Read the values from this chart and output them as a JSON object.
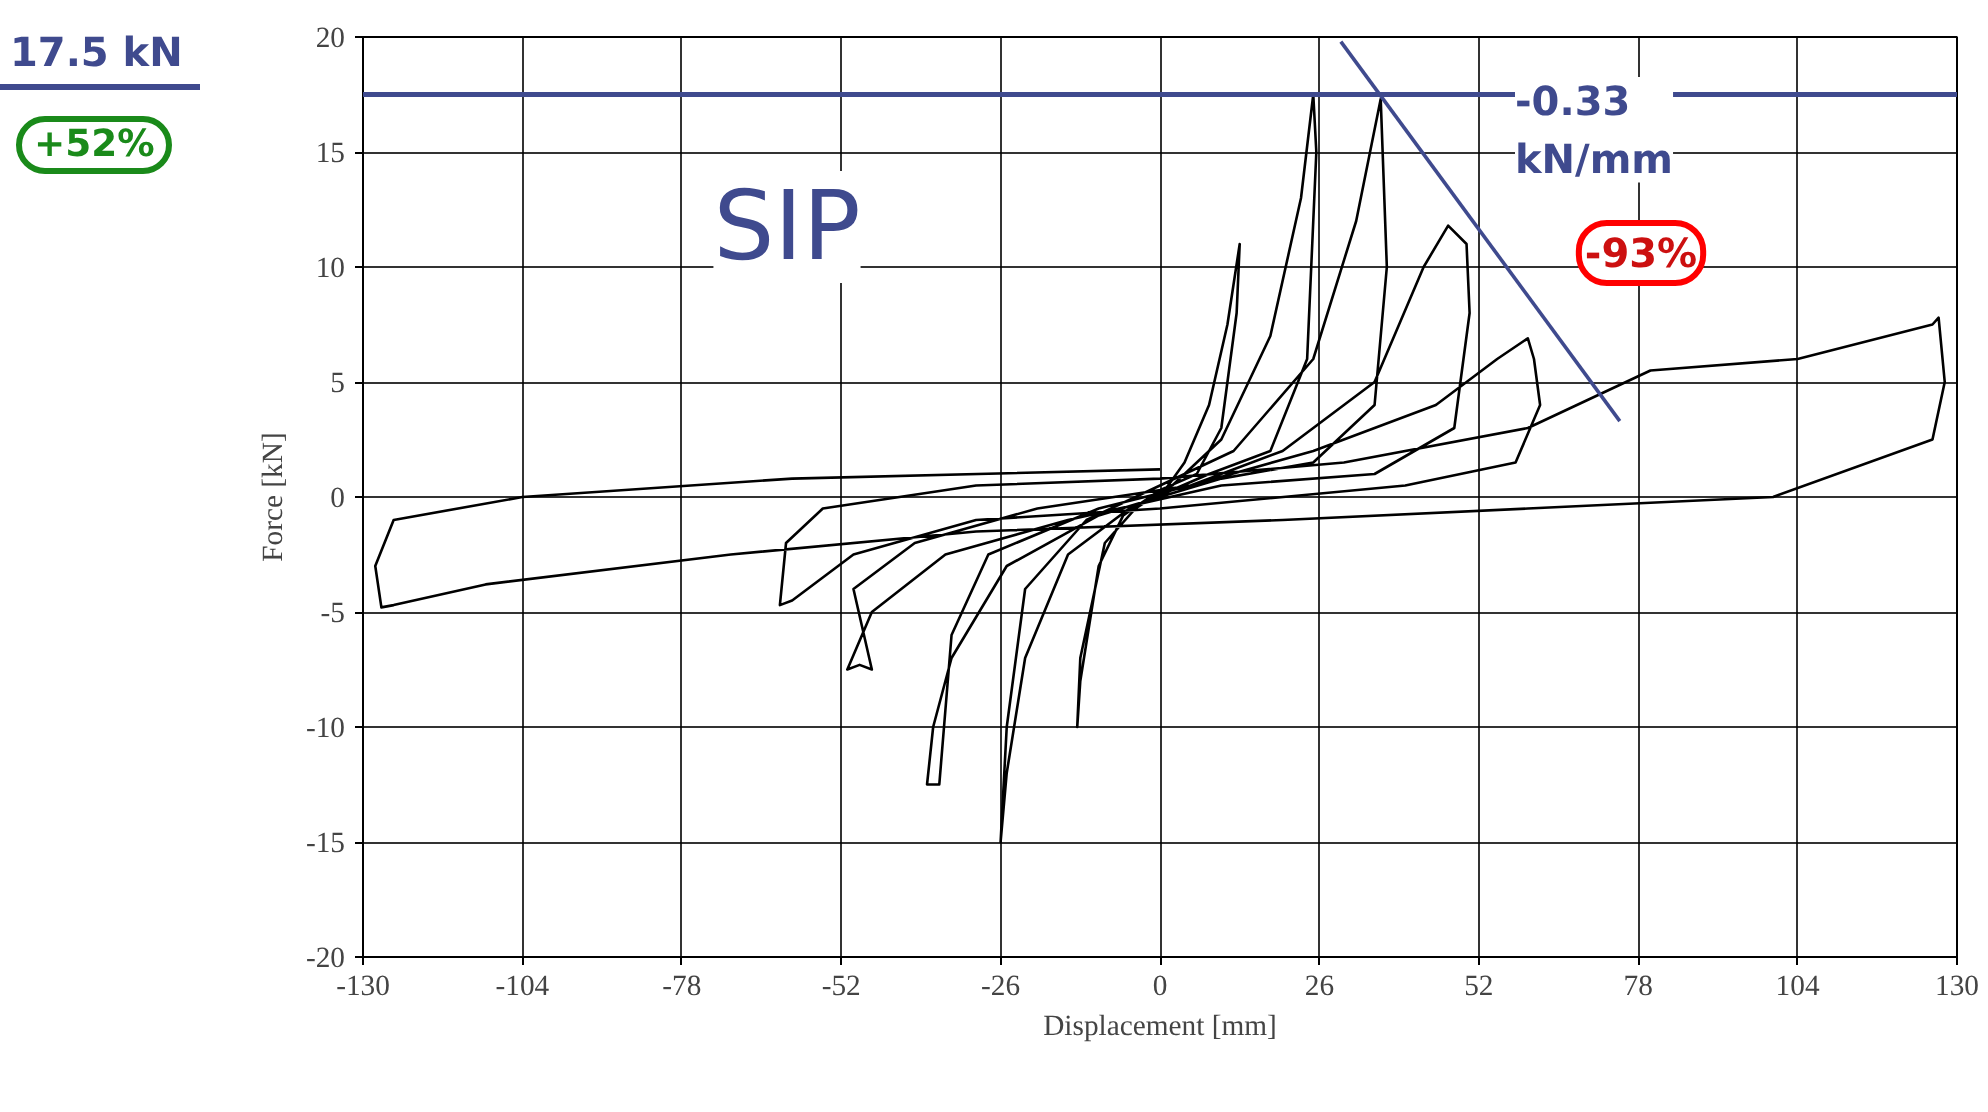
{
  "chart_data": {
    "type": "line",
    "xlabel": "Displacement [mm]",
    "ylabel": "Force [kN]",
    "xlim": [
      -130,
      130
    ],
    "xticks": [
      -130,
      -104,
      -78,
      -52,
      -26,
      0,
      26,
      52,
      78,
      104,
      130
    ],
    "ylim": [
      -20,
      20
    ],
    "yticks": [
      -20,
      -15,
      -10,
      -5,
      0,
      5,
      10,
      15,
      20
    ],
    "grid": true,
    "marker": "none",
    "line_style": "solid",
    "annotations": [
      "SIP",
      "+52%",
      "-0.33\nkN/mm",
      "-93%"
    ],
    "ref_lines": [
      {
        "axis": "y",
        "value": 17.5,
        "label": "17.5 kN",
        "color": "#3f4a8e"
      }
    ],
    "series": [
      {
        "color": "#000000",
        "x": [
          0,
          4,
          8,
          11,
          13,
          12.5,
          10,
          6,
          0,
          -6,
          -10,
          -13,
          -13.5,
          -13,
          -9,
          -4,
          2,
          10,
          18,
          23,
          25,
          25.5,
          24,
          18,
          8,
          -5,
          -15,
          -22,
          -25,
          -26,
          -25,
          -22,
          -12,
          0,
          12,
          25,
          32,
          36,
          37,
          35,
          25,
          10,
          -10,
          -25,
          -34,
          -37,
          -38,
          -36,
          -34,
          -28,
          -10,
          5,
          20,
          35,
          43,
          47,
          50,
          50.5,
          48,
          35,
          10,
          -15,
          -35,
          -47,
          -51,
          -49,
          -47,
          -50,
          -40,
          -20,
          5,
          25,
          45,
          55,
          60,
          61,
          62,
          58,
          40,
          0,
          -30,
          -50,
          -60,
          -62,
          -61,
          -55,
          -30,
          0,
          30,
          60,
          80,
          104,
          126,
          127,
          128,
          126,
          100,
          60,
          20,
          -30,
          -70,
          -110,
          -125,
          -127,
          -128,
          -125,
          -104,
          -60,
          0
        ],
        "values": [
          0,
          1.5,
          4,
          7.5,
          11,
          8,
          3,
          1,
          0.3,
          -0.8,
          -3,
          -8,
          -10,
          -7,
          -2,
          -0.5,
          0.5,
          2.5,
          7,
          13,
          17.5,
          15,
          6,
          2,
          1,
          -0.5,
          -2.5,
          -7,
          -12,
          -15,
          -10,
          -4,
          -1,
          0.5,
          2,
          6,
          12,
          17.3,
          10,
          4,
          1.5,
          0.8,
          -0.8,
          -3,
          -7,
          -10,
          -12.5,
          -12.5,
          -6,
          -2.5,
          -0.5,
          0.5,
          2,
          5,
          10,
          11.8,
          11,
          8,
          3,
          1,
          0.5,
          -1,
          -2.5,
          -5,
          -7.5,
          -7.3,
          -7.5,
          -4,
          -2,
          -0.5,
          0.5,
          2,
          4,
          6,
          6.9,
          6,
          4,
          1.5,
          0.5,
          -0.5,
          -1,
          -2.5,
          -4.5,
          -4.7,
          -2,
          -0.5,
          0.5,
          0.8,
          1.5,
          3,
          5.5,
          6,
          7.5,
          7.8,
          5,
          2.5,
          0,
          -0.5,
          -1,
          -1.5,
          -2.5,
          -3.8,
          -4.7,
          -4.8,
          -3,
          -1,
          0,
          0.8,
          1.2
        ]
      },
      {
        "type": "line",
        "color": "#3f4a8e",
        "x": [
          29.5,
          75
        ],
        "values": [
          19.8,
          3.3
        ]
      }
    ]
  }
}
